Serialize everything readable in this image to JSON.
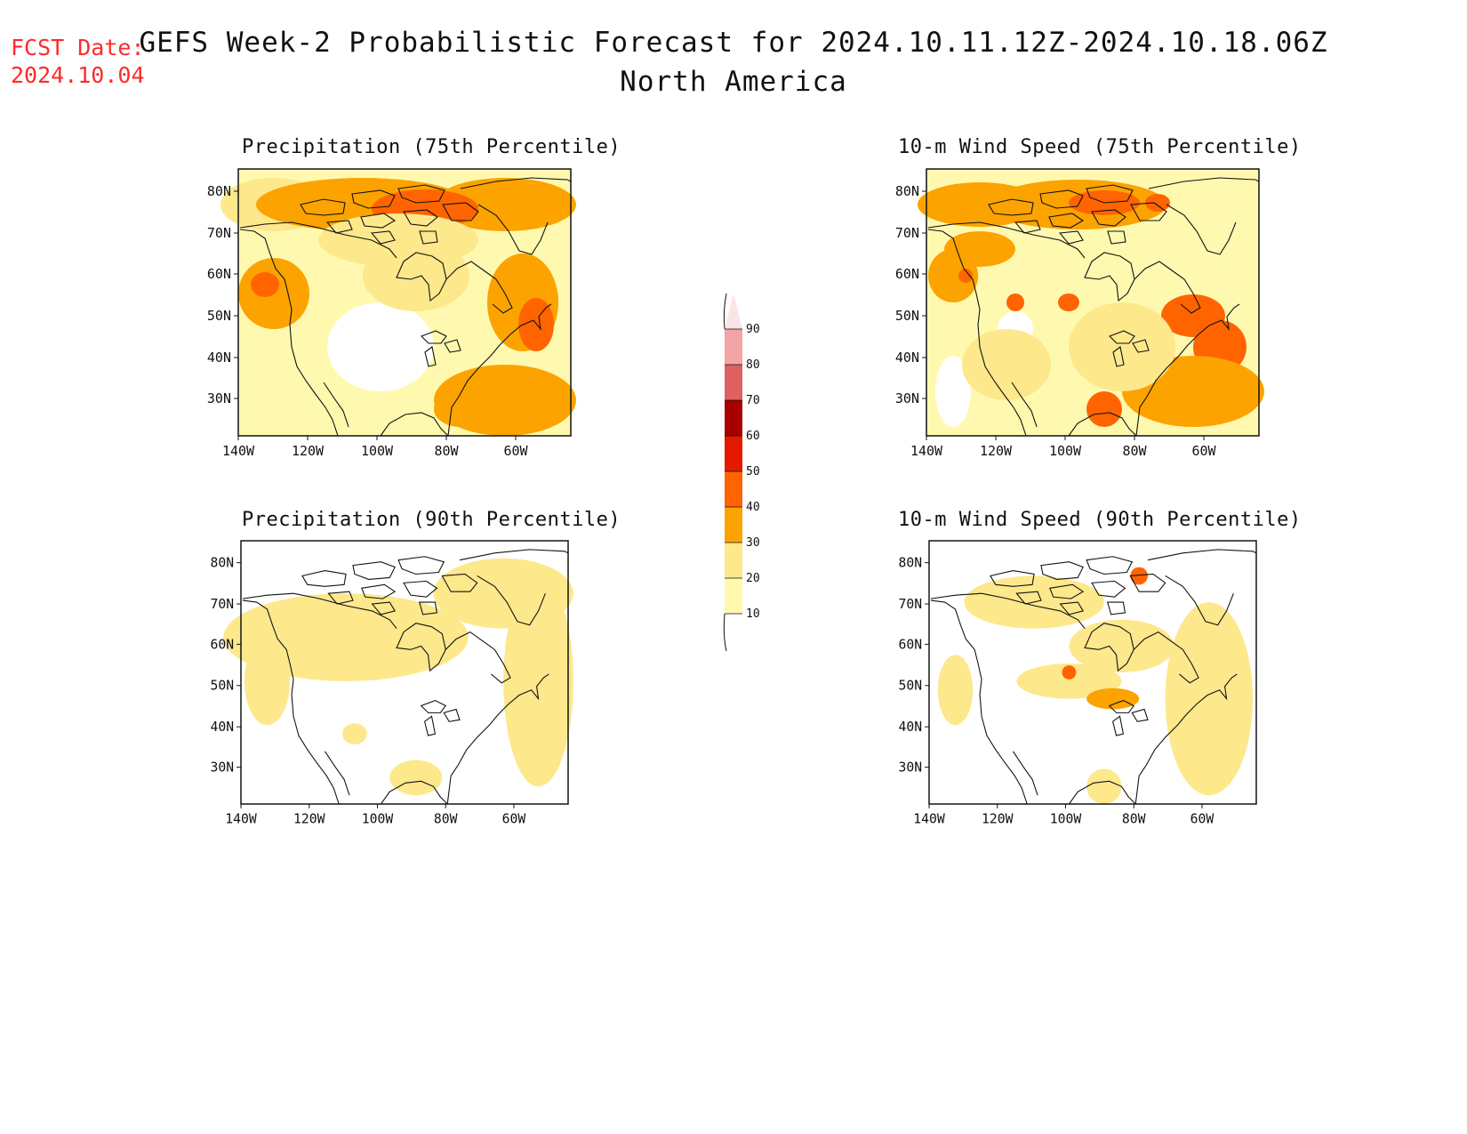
{
  "header": {
    "fcst_label": "FCST Date:",
    "fcst_date": "2024.10.04",
    "title_line1": "GEFS Week-2 Probabilistic Forecast for 2024.10.11.12Z-2024.10.18.06Z",
    "title_line2": "North America"
  },
  "panels": [
    {
      "id": "precip75",
      "title": "Precipitation (75th Percentile)"
    },
    {
      "id": "wind75",
      "title": "10-m Wind Speed (75th Percentile)"
    },
    {
      "id": "precip90",
      "title": "Precipitation (90th Percentile)"
    },
    {
      "id": "wind90",
      "title": "10-m Wind Speed (90th Percentile)"
    }
  ],
  "map_axes": {
    "lon_labels": [
      "140W",
      "120W",
      "100W",
      "80W",
      "60W"
    ],
    "lat_labels": [
      "80N",
      "70N",
      "60N",
      "50N",
      "40N",
      "30N"
    ]
  },
  "colorbar": {
    "levels": [
      "10",
      "20",
      "30",
      "40",
      "50",
      "60",
      "70",
      "80",
      "90"
    ],
    "colors": [
      "#fff9b0",
      "#fde88c",
      "#fca300",
      "#ff6400",
      "#e41a00",
      "#a80000",
      "#e06060",
      "#f4a4a4",
      "#fde4e4"
    ]
  }
}
